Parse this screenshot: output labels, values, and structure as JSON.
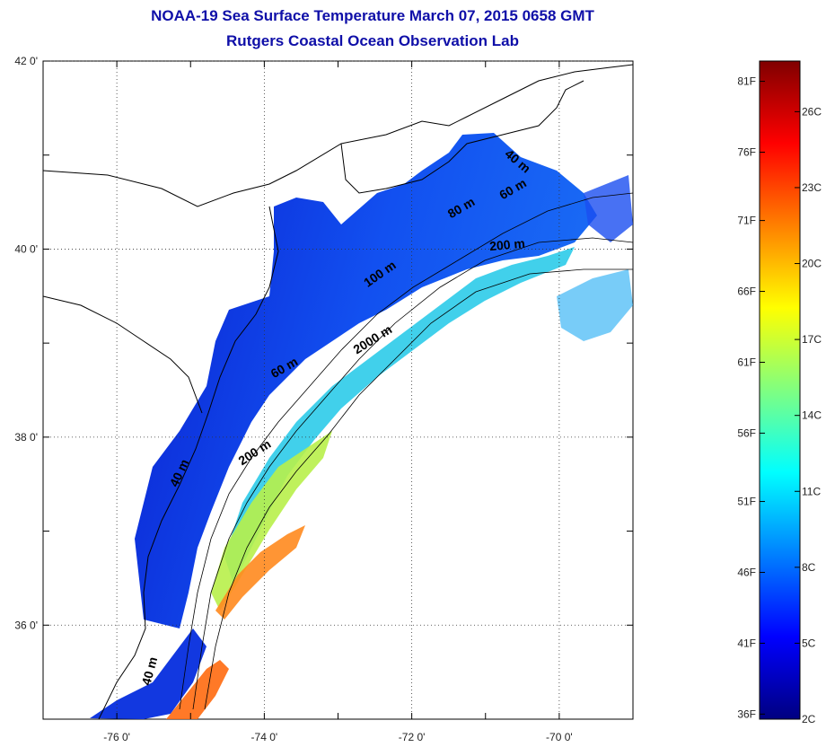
{
  "title": "NOAA-19 Sea Surface Temperature March 07, 2015 0658 GMT",
  "subtitle": "Rutgers Coastal Ocean Observation Lab",
  "map": {
    "lon_range": [
      -77,
      -69
    ],
    "lat_range": [
      35,
      42
    ],
    "lon_ticks": [
      {
        "value": -76,
        "label": "-76 0'"
      },
      {
        "value": -74,
        "label": "-74 0'"
      },
      {
        "value": -72,
        "label": "-72 0'"
      },
      {
        "value": -70,
        "label": "-70 0'"
      }
    ],
    "lat_ticks": [
      {
        "value": 42,
        "label": "42 0'"
      },
      {
        "value": 40,
        "label": "40 0'"
      },
      {
        "value": 38,
        "label": "38 0'"
      },
      {
        "value": 36,
        "label": "36 0'"
      }
    ],
    "grid": "dotted",
    "contour_labels": [
      {
        "text": "40 m",
        "lon": -70.6,
        "lat": 40.9,
        "angle": 40
      },
      {
        "text": "60 m",
        "lon": -70.6,
        "lat": 40.6,
        "angle": -30
      },
      {
        "text": "80 m",
        "lon": -71.3,
        "lat": 40.4,
        "angle": -30
      },
      {
        "text": "200 m",
        "lon": -70.7,
        "lat": 40.0,
        "angle": -5
      },
      {
        "text": "100 m",
        "lon": -72.4,
        "lat": 39.7,
        "angle": -35
      },
      {
        "text": "2000 m",
        "lon": -72.5,
        "lat": 39.0,
        "angle": -32
      },
      {
        "text": "60 m",
        "lon": -73.7,
        "lat": 38.7,
        "angle": -30
      },
      {
        "text": "200 m",
        "lon": -74.1,
        "lat": 37.8,
        "angle": -33
      },
      {
        "text": "40 m",
        "lon": -75.1,
        "lat": 37.6,
        "angle": -65
      },
      {
        "text": "40 m",
        "lon": -75.5,
        "lat": 35.5,
        "angle": -75
      }
    ]
  },
  "colorbar": {
    "colors": [
      "#000080",
      "#0000ff",
      "#0080ff",
      "#00ffff",
      "#80ff80",
      "#ffff00",
      "#ff8000",
      "#ff0000",
      "#800000"
    ],
    "range_c": [
      2,
      28
    ],
    "f_labels": [
      {
        "value_c": 2.2,
        "label": "36F"
      },
      {
        "value_c": 5.0,
        "label": "41F"
      },
      {
        "value_c": 7.8,
        "label": "46F"
      },
      {
        "value_c": 10.6,
        "label": "51F"
      },
      {
        "value_c": 13.3,
        "label": "56F"
      },
      {
        "value_c": 16.1,
        "label": "61F"
      },
      {
        "value_c": 18.9,
        "label": "66F"
      },
      {
        "value_c": 21.7,
        "label": "71F"
      },
      {
        "value_c": 24.4,
        "label": "76F"
      },
      {
        "value_c": 27.2,
        "label": "81F"
      }
    ],
    "c_labels": [
      {
        "value_c": 2,
        "label": "2C"
      },
      {
        "value_c": 5,
        "label": "5C"
      },
      {
        "value_c": 8,
        "label": "8C"
      },
      {
        "value_c": 11,
        "label": "11C"
      },
      {
        "value_c": 14,
        "label": "14C"
      },
      {
        "value_c": 17,
        "label": "17C"
      },
      {
        "value_c": 20,
        "label": "20C"
      },
      {
        "value_c": 23,
        "label": "23C"
      },
      {
        "value_c": 26,
        "label": "26C"
      }
    ]
  }
}
